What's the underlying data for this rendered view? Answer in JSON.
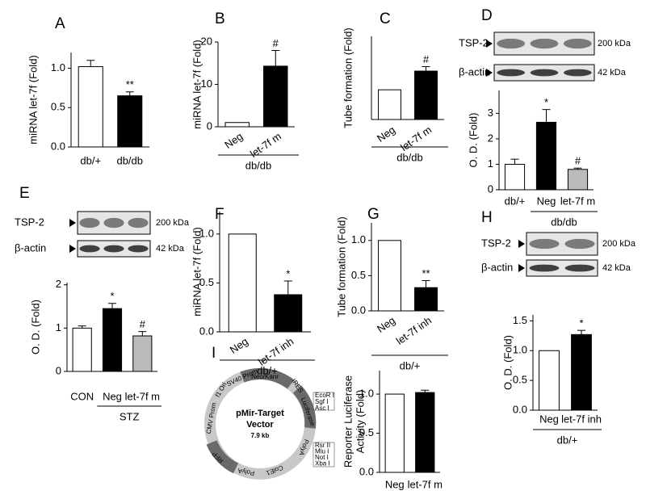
{
  "chart_data": [
    {
      "type": "bar",
      "panel": "A",
      "ylabel": "miRNA let-7f (Fold)",
      "categories": [
        "db/+",
        "db/db"
      ],
      "values": [
        1.02,
        0.65
      ],
      "errors": [
        0.08,
        0.05
      ],
      "colors": [
        "#ffffff",
        "#000000"
      ],
      "significance": [
        null,
        "**"
      ],
      "ylim": [
        0,
        1.2
      ],
      "yticks": [
        {
          "value": 0,
          "label": "0.0"
        },
        0.5,
        {
          "value": 1,
          "label": "1.0"
        }
      ]
    },
    {
      "type": "bar",
      "panel": "B",
      "ylabel": "miRNA let-7f (Fold)",
      "categories": [
        "Neg",
        "let-7f m"
      ],
      "values": [
        1,
        14.3
      ],
      "errors": [
        null,
        3.7
      ],
      "colors": [
        "#ffffff",
        "#000000"
      ],
      "significance": [
        null,
        "#"
      ],
      "group": "db/db",
      "ylim": [
        0,
        20
      ],
      "yticks": [
        0,
        10,
        20
      ]
    },
    {
      "type": "bar",
      "panel": "C",
      "ylabel": "Tube formation (Fold)",
      "categories": [
        "Neg",
        "let-7f m"
      ],
      "values": [
        1,
        1.63
      ],
      "errors": [
        null,
        0.15
      ],
      "colors": [
        "#ffffff",
        "#000000"
      ],
      "significance": [
        null,
        "#"
      ],
      "group": "db/db",
      "ylim": [
        0,
        2.8
      ]
    },
    {
      "type": "bar",
      "panel": "D",
      "ylabel": "O. D. (Fold)",
      "blot": {
        "rows": [
          "TSP-2",
          "β-actin"
        ],
        "sizes": [
          "200 kDa",
          "42 kDa"
        ]
      },
      "categories": [
        "db/+",
        "Neg",
        "let-7f m"
      ],
      "values": [
        1.0,
        2.65,
        0.8
      ],
      "errors": [
        0.2,
        0.5,
        0.05
      ],
      "colors": [
        "#ffffff",
        "#000000",
        "#bbbbbb"
      ],
      "significance": [
        null,
        "*",
        "#"
      ],
      "group": "db/db",
      "ylim": [
        0,
        3.9
      ],
      "yticks": [
        0,
        1,
        2,
        3
      ]
    },
    {
      "type": "bar",
      "panel": "E",
      "ylabel": "O. D. (Fold)",
      "blot": {
        "rows": [
          "TSP-2",
          "β-actin"
        ],
        "sizes": [
          "200 kDa",
          "42 kDa"
        ]
      },
      "categories": [
        "CON",
        "Neg",
        "let-7f m"
      ],
      "values": [
        1.0,
        1.45,
        0.82
      ],
      "errors": [
        0.05,
        0.12,
        0.1
      ],
      "colors": [
        "#ffffff",
        "#000000",
        "#bbbbbb"
      ],
      "significance": [
        null,
        "*",
        "#"
      ],
      "group": "STZ",
      "ylim": [
        0,
        2.05
      ],
      "yticks": [
        0,
        1,
        2
      ]
    },
    {
      "type": "bar",
      "panel": "F",
      "ylabel": "miRNA let-7f (Fold)",
      "categories": [
        "Neg",
        "let-7f inh"
      ],
      "values": [
        1.0,
        0.38
      ],
      "errors": [
        null,
        0.14
      ],
      "colors": [
        "#ffffff",
        "#000000"
      ],
      "significance": [
        null,
        "*"
      ],
      "group": "db/+",
      "ylim": [
        0,
        1.23
      ],
      "yticks": [
        {
          "value": 0,
          "label": "0.0"
        },
        0.5,
        {
          "value": 1,
          "label": "1.0"
        }
      ]
    },
    {
      "type": "bar",
      "panel": "G",
      "ylabel": "Tube formation (Fold)",
      "categories": [
        "Neg",
        "let-7f inh"
      ],
      "values": [
        1.0,
        0.33
      ],
      "errors": [
        null,
        0.1
      ],
      "colors": [
        "#ffffff",
        "#000000"
      ],
      "significance": [
        null,
        "**"
      ],
      "group": "db/+",
      "ylim": [
        0,
        1.25
      ],
      "yticks": [
        {
          "value": 0,
          "label": "0.0"
        },
        0.5,
        {
          "value": 1,
          "label": "1.0"
        }
      ]
    },
    {
      "type": "bar",
      "panel": "H",
      "ylabel": "O. D. (Fold)",
      "blot": {
        "rows": [
          "TSP-2",
          "β-actin"
        ],
        "sizes": [
          "200 kDa",
          "42 kDa"
        ]
      },
      "categories": [
        "Neg",
        "let-7f inh"
      ],
      "values": [
        1.0,
        1.27
      ],
      "errors": [
        null,
        0.07
      ],
      "colors": [
        "#ffffff",
        "#000000"
      ],
      "significance": [
        null,
        "*"
      ],
      "group": "db/+",
      "ylim": [
        0,
        1.6
      ],
      "yticks": [
        {
          "value": 0,
          "label": "0.0"
        },
        0.5,
        {
          "value": 1,
          "label": "1.0"
        },
        1.5
      ]
    },
    {
      "type": "bar",
      "ylabel": [
        "Reporter Luciferase",
        "Activity (Fold)"
      ],
      "categories": [
        "Neg",
        "let-7f m"
      ],
      "values": [
        1.0,
        1.02
      ],
      "errors": [
        null,
        0.03
      ],
      "colors": [
        "#ffffff",
        "#000000"
      ],
      "ylim": [
        0,
        1.3
      ],
      "yticks": [
        {
          "value": 0,
          "label": "0.0"
        },
        0.5,
        {
          "value": 1,
          "label": "1.0"
        }
      ]
    }
  ],
  "plasmid": {
    "panel": "I",
    "name": "pMir-Target",
    "subtitle": "Vector",
    "size": "7.9 kb",
    "features": [
      "Neo/Kanr",
      "IRES",
      "Luciferase",
      "PolyA",
      "ColE1",
      "PolyA",
      "RFP",
      "CMV Prom",
      "f1 Ori",
      "SV40 Prom"
    ],
    "sites": [
      "EcoR I",
      "Sgf I",
      "Asc I",
      "Rsr II",
      "Mlu I",
      "Not I",
      "Xba I"
    ]
  }
}
